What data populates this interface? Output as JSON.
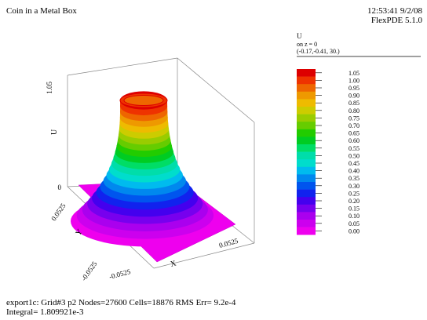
{
  "header": {
    "title": "Coin in a Metal Box",
    "timestamp": "12:53:41 9/2/08",
    "software": "FlexPDE 5.1.0"
  },
  "legend_header": {
    "variable": "U",
    "slice": "on z = 0",
    "view_point": "(-0.17,-0.41, 30.)"
  },
  "footer": {
    "line1": "export1c:  Grid#3  p2  Nodes=27600 Cells=18876 RMS Err= 9.2e-4",
    "line2": "Integral=  1.809921e-3"
  },
  "chart_data": {
    "type": "surface",
    "zlabel": "U",
    "xlabel": "X",
    "ylabel": "Y",
    "z_ticks": [
      "1.05",
      "0"
    ],
    "x_ticks": [
      "-0.0525",
      "0.0525"
    ],
    "y_ticks": [
      "0.0525",
      "-0.0525"
    ],
    "colorbar": {
      "levels": [
        0.0,
        0.05,
        0.1,
        0.15,
        0.2,
        0.25,
        0.3,
        0.35,
        0.4,
        0.45,
        0.5,
        0.55,
        0.6,
        0.65,
        0.7,
        0.75,
        0.8,
        0.85,
        0.9,
        0.95,
        1.0,
        1.05
      ],
      "labels": [
        "0.00",
        "0.05",
        "0.10",
        "0.15",
        "0.20",
        "0.25",
        "0.30",
        "0.35",
        "0.40",
        "0.45",
        "0.50",
        "0.55",
        "0.60",
        "0.65",
        "0.70",
        "0.75",
        "0.80",
        "0.85",
        "0.90",
        "0.95",
        "1.00",
        "1.05"
      ],
      "colors": [
        "#ee00ee",
        "#cc00ee",
        "#aa00ee",
        "#7700ee",
        "#4400ee",
        "#1122ee",
        "#0055ee",
        "#0088ee",
        "#00bbee",
        "#00ddcc",
        "#00ddaa",
        "#00dd66",
        "#00cc22",
        "#22cc00",
        "#66cc00",
        "#99cc00",
        "#cccc00",
        "#eebb00",
        "#ee9900",
        "#ee6600",
        "#ee3300",
        "#dd0000"
      ]
    }
  }
}
